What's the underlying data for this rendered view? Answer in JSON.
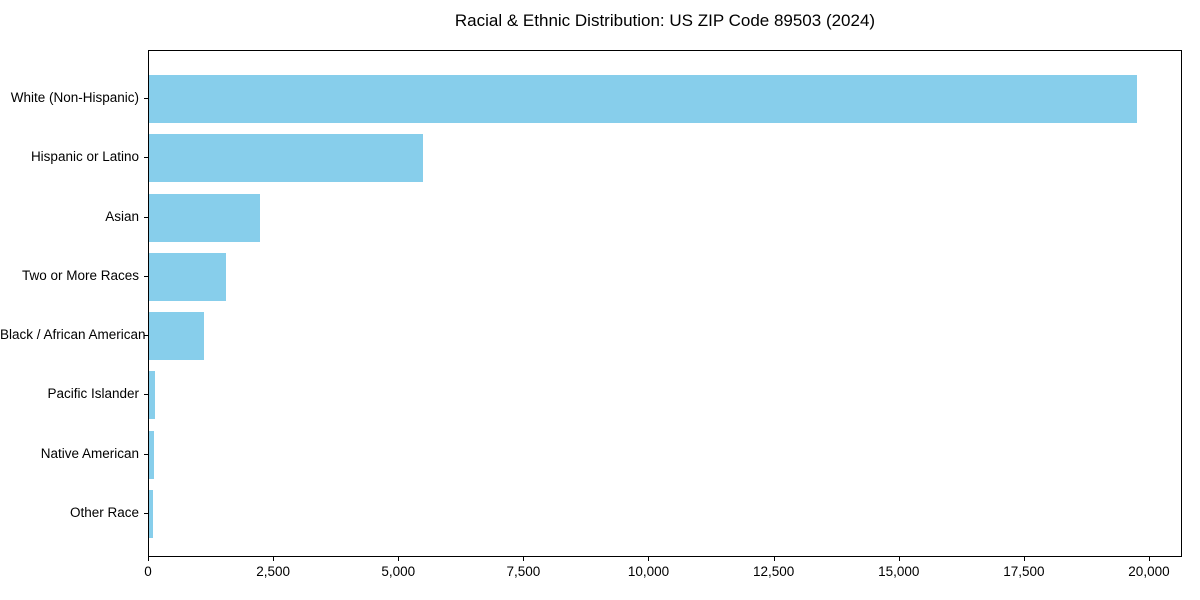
{
  "title": "Racial & Ethnic Distribution: US ZIP Code 89503 (2024)",
  "chart_data": {
    "type": "bar",
    "orientation": "horizontal",
    "title": "Racial & Ethnic Distribution: US ZIP Code 89503 (2024)",
    "categories": [
      "White (Non-Hispanic)",
      "Hispanic or Latino",
      "Asian",
      "Two or More Races",
      "Black / African American",
      "Pacific Islander",
      "Native American",
      "Other Race"
    ],
    "values": [
      19750,
      5470,
      2220,
      1540,
      1090,
      120,
      95,
      75
    ],
    "xlabel": "",
    "ylabel": "",
    "xlim": [
      0,
      20660
    ],
    "x_ticks": [
      0,
      2500,
      5000,
      7500,
      10000,
      12500,
      15000,
      17500,
      20000
    ],
    "bar_color": "#87CEEB",
    "text_color": "#000000",
    "grid": false,
    "legend_position": "none"
  }
}
